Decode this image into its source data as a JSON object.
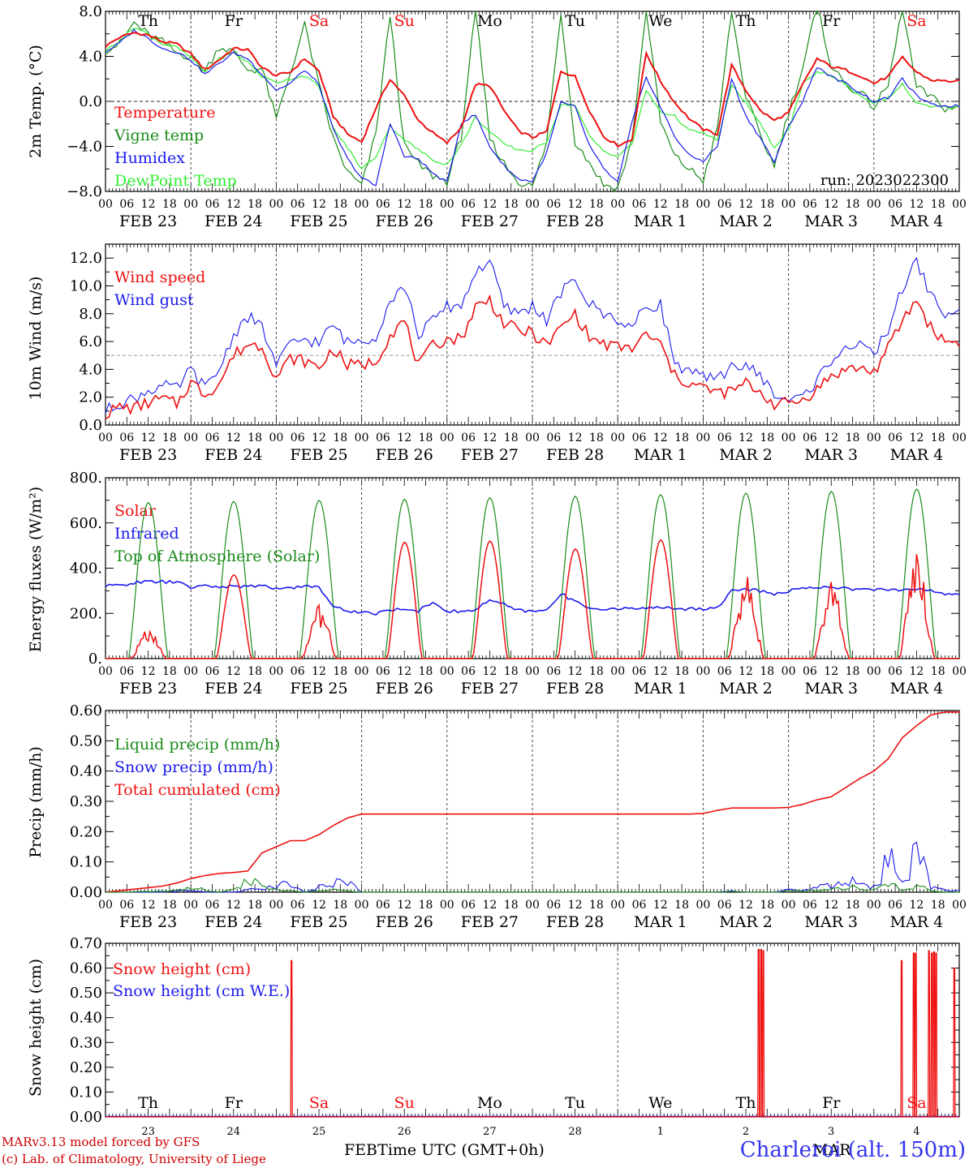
{
  "chart_data": [
    {
      "type": "line",
      "ylabel": "2m Temp. (°C)",
      "ylim": [
        -8,
        8
      ],
      "yticks": [
        8,
        4,
        0,
        -4,
        -8
      ],
      "ytick_labels": [
        "8.0",
        "4.0",
        "0.0",
        "−4.0",
        "−8.0"
      ],
      "reference_lines": [
        0
      ],
      "legend": [
        "Temperature",
        "Vigne temp",
        "Humidex",
        "DewPoint Temp"
      ],
      "legend_position": "top-left",
      "run_label": "run: 2023022300",
      "day_letters": [
        "Th",
        "Fr",
        "Sa",
        "Su",
        "Mo",
        "Tu",
        "We",
        "Th",
        "Fr",
        "Sa"
      ],
      "day_letter_colors": [
        "#000000",
        "#000000",
        "#ee1111",
        "#ee1111",
        "#000000",
        "#000000",
        "#000000",
        "#000000",
        "#000000",
        "#ee1111"
      ],
      "series": [
        {
          "name": "Temperature",
          "color": "#ee1111",
          "values": [
            4.9,
            5.7,
            6.1,
            5.9,
            5.3,
            5.1,
            4.2,
            2.8,
            3.7,
            4.7,
            4.6,
            3.0,
            2.3,
            2.6,
            3.8,
            2.7,
            -1.3,
            -2.9,
            -3.6,
            -0.6,
            2.0,
            0.5,
            -1.7,
            -2.8,
            -3.7,
            -2.3,
            1.5,
            1.4,
            -0.8,
            -2.6,
            -3.2,
            -2.7,
            2.7,
            2.2,
            -0.8,
            -3.1,
            -3.9,
            -3.4,
            4.3,
            1.8,
            -0.1,
            -1.5,
            -2.5,
            -2.9,
            3.2,
            1.0,
            -0.8,
            -1.7,
            -1.0,
            1.5,
            3.8,
            3.1,
            2.8,
            2.3,
            1.6,
            2.2,
            3.9,
            2.6,
            1.9,
            1.8
          ]
        },
        {
          "name": "Vigne temp",
          "color": "#1a8c1a",
          "values": [
            4.6,
            5.1,
            7.0,
            5.9,
            5.3,
            4.3,
            4.0,
            2.7,
            4.9,
            4.4,
            2.8,
            2.9,
            -1.6,
            2.6,
            6.8,
            1.4,
            -3.3,
            -6.3,
            -7.5,
            -2.9,
            7.7,
            -4.0,
            -5.6,
            -6.6,
            -7.1,
            -3.1,
            8.2,
            -3.3,
            -5.5,
            -7.1,
            -7.6,
            -3.7,
            8.0,
            -3.6,
            -5.4,
            -7.4,
            -7.7,
            -3.5,
            8.2,
            -1.8,
            -4.9,
            -6.0,
            -7.0,
            -2.5,
            8.0,
            0.4,
            -3.0,
            -5.7,
            -1.0,
            3.0,
            8.5,
            3.2,
            1.5,
            0.8,
            -0.5,
            1.4,
            8.3,
            1.2,
            0.4,
            -0.6
          ]
        },
        {
          "name": "Humidex",
          "color": "#1a1aee",
          "values": [
            4.4,
            5.2,
            6.3,
            5.6,
            4.7,
            4.4,
            3.7,
            2.4,
            3.4,
            4.3,
            3.8,
            2.4,
            1.0,
            1.6,
            2.8,
            1.5,
            -2.5,
            -5.1,
            -6.8,
            -7.5,
            -1.9,
            -4.9,
            -5.1,
            -6.4,
            -7.2,
            -1.9,
            -1.2,
            -4.0,
            -5.7,
            -6.9,
            -7.1,
            -4.6,
            -0.1,
            -0.5,
            -3.9,
            -6.0,
            -7.2,
            -1.9,
            2.2,
            -0.5,
            -3.1,
            -4.8,
            -5.3,
            -4.0,
            2.0,
            -1.3,
            -3.2,
            -5.4,
            -2.2,
            0.0,
            3.1,
            2.2,
            1.6,
            0.8,
            0.0,
            0.3,
            2.0,
            0.5,
            -0.3,
            -0.4
          ]
        },
        {
          "name": "DewPoint Temp",
          "color": "#33ee33",
          "values": [
            4.5,
            5.4,
            6.6,
            6.0,
            5.1,
            4.8,
            3.9,
            2.6,
            3.8,
            4.3,
            3.5,
            2.2,
            1.7,
            2.0,
            2.3,
            1.3,
            -2.4,
            -4.1,
            -6.0,
            -4.9,
            -2.2,
            -3.4,
            -4.3,
            -5.2,
            -5.6,
            -3.9,
            -1.4,
            -2.7,
            -3.8,
            -4.3,
            -4.4,
            -3.6,
            -0.3,
            -0.3,
            -3.1,
            -4.4,
            -4.9,
            -3.8,
            1.0,
            -0.9,
            -1.3,
            -2.6,
            -2.8,
            -3.5,
            1.4,
            -0.1,
            -2.0,
            -4.1,
            -2.5,
            1.5,
            2.6,
            2.3,
            1.5,
            0.5,
            -0.1,
            0.3,
            1.5,
            -0.2,
            -0.5,
            -0.5
          ]
        }
      ]
    },
    {
      "type": "line",
      "ylabel": "10m Wind (m/s)",
      "ylim": [
        0,
        13
      ],
      "yticks": [
        0,
        2,
        4,
        6,
        8,
        10,
        12
      ],
      "ytick_labels": [
        "0.0",
        "2.0",
        "4.0",
        "6.0",
        "8.0",
        "10.0",
        "12.0"
      ],
      "reference_lines": [
        5
      ],
      "legend": [
        "Wind speed",
        "Wind gust"
      ],
      "legend_position": "top-left",
      "series": [
        {
          "name": "Wind speed",
          "color": "#ee1111",
          "values": [
            0.8,
            1.3,
            1.2,
            1.6,
            1.9,
            1.5,
            3.1,
            2.2,
            3.0,
            5.0,
            5.8,
            5.7,
            3.4,
            4.8,
            4.6,
            4.1,
            5.5,
            4.3,
            4.3,
            4.6,
            6.5,
            7.5,
            4.2,
            5.7,
            6.2,
            6.2,
            8.5,
            9.0,
            7.3,
            6.8,
            6.6,
            5.7,
            7.0,
            8.0,
            6.3,
            5.8,
            5.6,
            5.5,
            6.5,
            5.8,
            3.5,
            3.0,
            2.7,
            2.3,
            2.4,
            3.0,
            2.4,
            1.5,
            1.6,
            1.8,
            2.6,
            3.5,
            4.0,
            4.1,
            3.8,
            5.5,
            7.5,
            9.0,
            7.0,
            6.0
          ]
        },
        {
          "name": "Wind gust",
          "color": "#1a1aee",
          "values": [
            1.0,
            1.6,
            1.9,
            2.5,
            2.8,
            2.6,
            4.0,
            2.6,
            4.0,
            6.5,
            7.8,
            7.0,
            4.3,
            5.8,
            6.2,
            5.9,
            7.2,
            5.9,
            6.1,
            6.4,
            9.0,
            10.0,
            6.5,
            7.5,
            8.5,
            8.6,
            11.0,
            11.8,
            8.5,
            8.0,
            8.6,
            7.5,
            9.5,
            10.4,
            8.7,
            8.0,
            7.6,
            7.0,
            8.5,
            8.7,
            4.5,
            3.8,
            3.4,
            3.2,
            4.4,
            4.1,
            3.7,
            2.1,
            1.8,
            2.0,
            3.2,
            4.7,
            5.7,
            5.6,
            5.1,
            6.9,
            9.8,
            11.8,
            9.3,
            8.0
          ]
        }
      ]
    },
    {
      "type": "line",
      "ylabel": "Energy fluxes (W/m²)",
      "ylim": [
        0,
        800
      ],
      "yticks": [
        0,
        200,
        400,
        600,
        800
      ],
      "ytick_labels": [
        "0.",
        "200.",
        "400.",
        "600.",
        "800."
      ],
      "legend": [
        "Solar",
        "Infrared",
        "Top of Atmosphere (Solar)"
      ],
      "legend_position": "top-left",
      "toa_peaks": [
        690,
        695,
        700,
        705,
        712,
        718,
        725,
        732,
        740,
        750
      ],
      "solar_peaks": [
        130,
        370,
        240,
        515,
        520,
        485,
        525,
        370,
        340,
        470
      ],
      "series": [
        {
          "name": "Infrared",
          "color": "#1a1aee",
          "values": [
            320,
            325,
            335,
            340,
            340,
            338,
            315,
            320,
            318,
            320,
            318,
            322,
            310,
            315,
            318,
            318,
            230,
            210,
            205,
            200,
            215,
            220,
            212,
            250,
            210,
            208,
            215,
            260,
            240,
            212,
            210,
            212,
            290,
            250,
            225,
            220,
            218,
            222,
            226,
            226,
            220,
            220,
            222,
            224,
            300,
            305,
            300,
            285,
            300,
            310,
            315,
            320,
            310,
            305,
            305,
            305,
            300,
            310,
            300,
            285
          ]
        }
      ]
    },
    {
      "type": "line",
      "ylabel": "Precip (mm/h)",
      "ylim": [
        0,
        0.6
      ],
      "yticks": [
        0,
        0.1,
        0.2,
        0.3,
        0.4,
        0.5,
        0.6
      ],
      "ytick_labels": [
        "0.00",
        "0.10",
        "0.20",
        "0.30",
        "0.40",
        "0.50",
        "0.60"
      ],
      "legend": [
        "Liquid precip (mm/h)",
        "Snow precip (mm/h)",
        "Total cumulated (cm)"
      ],
      "legend_position": "top-left",
      "series": [
        {
          "name": "Total cumulated (cm)",
          "color": "#ee1111",
          "values": [
            0.0,
            0.005,
            0.01,
            0.015,
            0.02,
            0.03,
            0.045,
            0.055,
            0.062,
            0.065,
            0.07,
            0.13,
            0.15,
            0.17,
            0.17,
            0.19,
            0.22,
            0.245,
            0.258,
            0.258,
            0.258,
            0.258,
            0.258,
            0.258,
            0.258,
            0.258,
            0.258,
            0.258,
            0.258,
            0.258,
            0.258,
            0.258,
            0.258,
            0.258,
            0.258,
            0.258,
            0.258,
            0.258,
            0.258,
            0.258,
            0.258,
            0.258,
            0.26,
            0.27,
            0.278,
            0.278,
            0.278,
            0.278,
            0.28,
            0.29,
            0.305,
            0.315,
            0.345,
            0.375,
            0.4,
            0.44,
            0.51,
            0.55,
            0.585,
            0.595
          ]
        },
        {
          "name": "Snow precip (mm/h)",
          "color": "#1a1aee",
          "values": [
            0,
            0,
            0,
            0,
            0,
            0.005,
            0.01,
            0,
            0,
            0,
            0.01,
            0.02,
            0.03,
            0.04,
            0,
            0.02,
            0.03,
            0.065,
            0,
            0,
            0,
            0,
            0,
            0,
            0,
            0,
            0,
            0,
            0,
            0,
            0,
            0,
            0,
            0,
            0,
            0,
            0,
            0,
            0,
            0,
            0,
            0,
            0,
            0,
            0.005,
            0,
            0,
            0,
            0.01,
            0.01,
            0.02,
            0.03,
            0.04,
            0.05,
            0.02,
            0.15,
            0.05,
            0.18,
            0.02,
            0.01
          ]
        },
        {
          "name": "Liquid precip (mm/h)",
          "color": "#1a8c1a",
          "values": [
            0,
            0,
            0.002,
            0.003,
            0.005,
            0.01,
            0.02,
            0.01,
            0,
            0.01,
            0.05,
            0.03,
            0.01,
            0.005,
            0,
            0.005,
            0.01,
            0.005,
            0,
            0,
            0,
            0,
            0,
            0,
            0,
            0,
            0,
            0,
            0,
            0,
            0,
            0,
            0,
            0,
            0,
            0,
            0,
            0,
            0,
            0,
            0,
            0,
            0,
            0,
            0.003,
            0,
            0,
            0,
            0.005,
            0.005,
            0.01,
            0.01,
            0.02,
            0.02,
            0.01,
            0.04,
            0.01,
            0.03,
            0.005,
            0
          ]
        }
      ]
    },
    {
      "type": "line",
      "ylabel": "Snow height (cm)",
      "ylim": [
        0,
        0.7
      ],
      "yticks": [
        0,
        0.1,
        0.2,
        0.3,
        0.4,
        0.5,
        0.6,
        0.7
      ],
      "ytick_labels": [
        "0.00",
        "0.10",
        "0.20",
        "0.30",
        "0.40",
        "0.50",
        "0.60",
        "0.70"
      ],
      "legend": [
        "Snow height (cm)",
        "Snow height (cm W.E.)"
      ],
      "legend_position": "top-left",
      "snow_spikes": [
        {
          "t": 52.3,
          "h": 0.63
        },
        {
          "t": 183.6,
          "h": 0.675
        },
        {
          "t": 184.3,
          "h": 0.675
        },
        {
          "t": 184.9,
          "h": 0.67
        },
        {
          "t": 223.8,
          "h": 0.63
        },
        {
          "t": 227.2,
          "h": 0.66
        },
        {
          "t": 227.8,
          "h": 0.66
        },
        {
          "t": 231.5,
          "h": 0.67
        },
        {
          "t": 232.3,
          "h": 0.66
        },
        {
          "t": 232.9,
          "h": 0.665
        },
        {
          "t": 233.5,
          "h": 0.66
        },
        {
          "t": 238.6,
          "h": 0.6
        }
      ]
    }
  ],
  "time_axis": {
    "hour_labels": [
      "00",
      "06",
      "12",
      "18"
    ],
    "date_labels": [
      "FEB 23",
      "FEB 24",
      "FEB 25",
      "FEB 26",
      "FEB 27",
      "FEB 28",
      "MAR  1",
      "MAR  2",
      "MAR  3",
      "MAR  4"
    ],
    "last_hour_label": "00"
  },
  "bottom_axis": {
    "day_numbers": [
      "23",
      "24",
      "25",
      "26",
      "27",
      "28",
      "1",
      "2",
      "3",
      "4"
    ],
    "month_left": "FEB",
    "month_right": "MAR",
    "xlabel": "Time UTC (GMT+0h)"
  },
  "footer": {
    "credit_line1": "MARv3.13 model forced by GFS",
    "credit_line2": "(c) Lab. of Climatology, University of Liege",
    "station": "Charleroi (alt. 150m)"
  },
  "colors": {
    "red": "#ee1111",
    "green": "#1a8c1a",
    "blue": "#1a1aee",
    "lightgreen": "#33ee33",
    "station": "#3333ee",
    "credit": "#cc0000"
  }
}
